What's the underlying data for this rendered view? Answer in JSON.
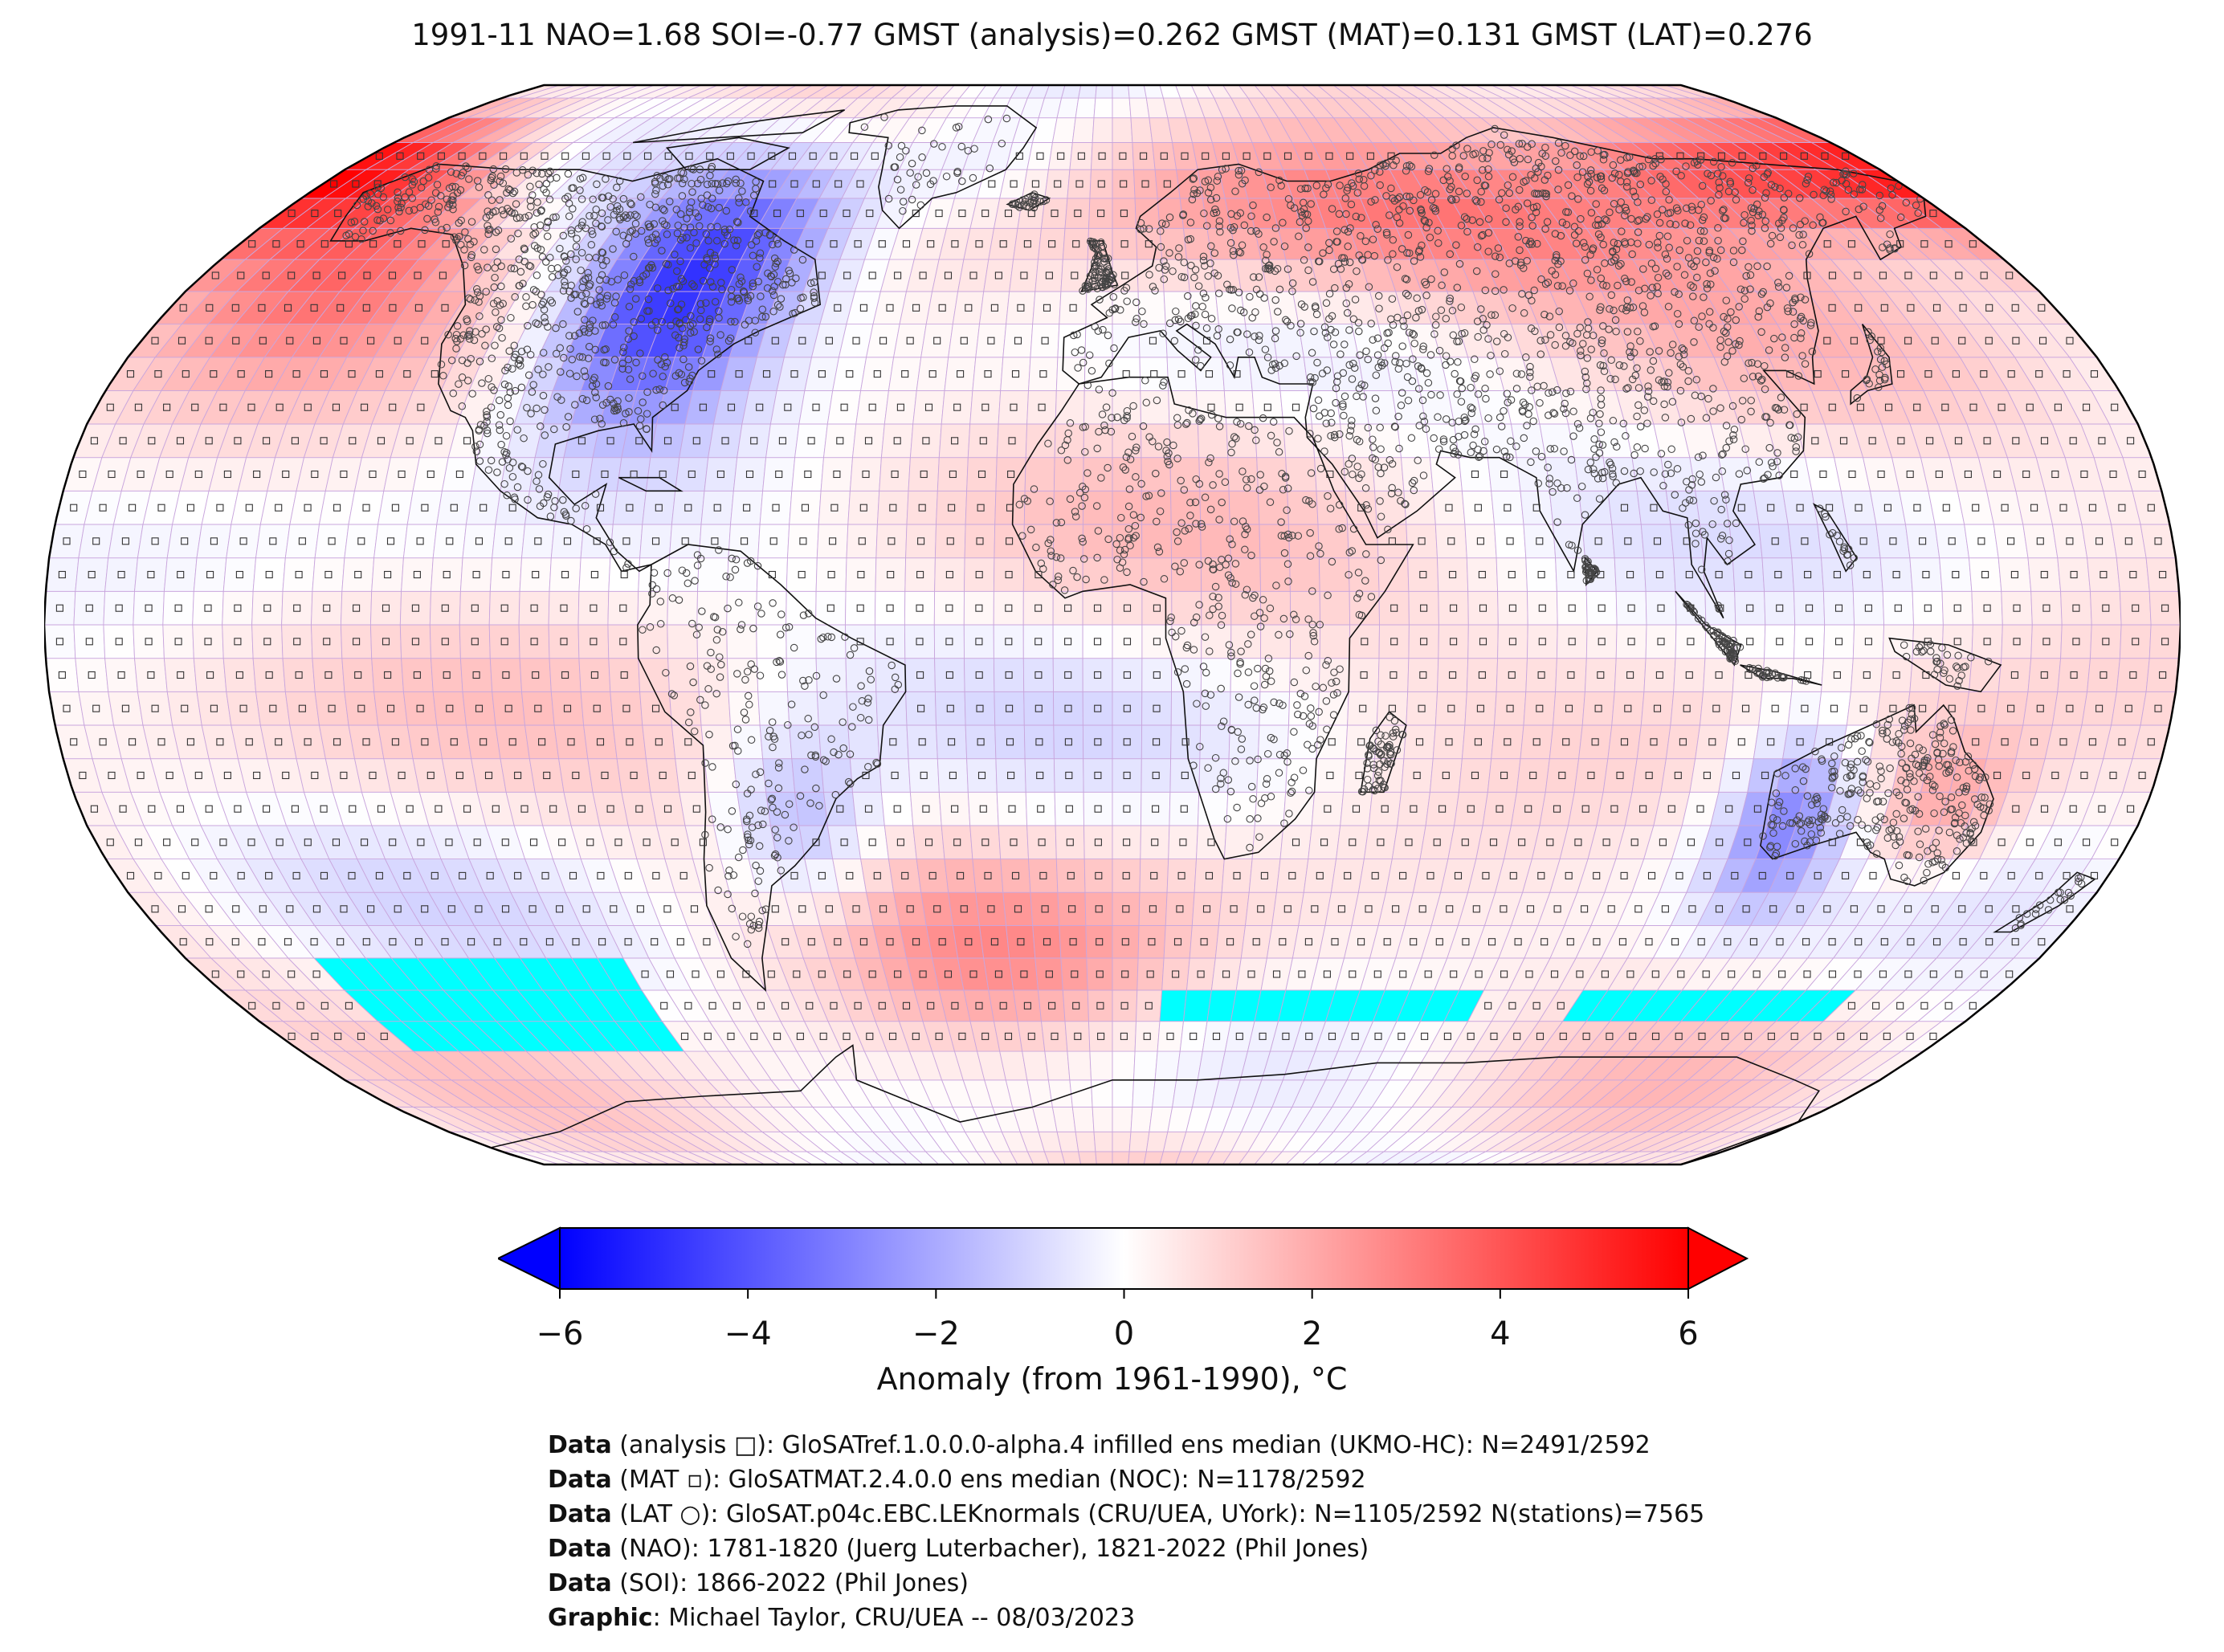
{
  "title": "1991-11 NAO=1.68 SOI=-0.77 GMST (analysis)=0.262 GMST (MAT)=0.131 GMST (LAT)=0.276",
  "colorbar": {
    "label": "Anomaly (from 1961-1990), °C",
    "ticks": [
      "−6",
      "−4",
      "−2",
      "0",
      "2",
      "4",
      "6"
    ],
    "range": [
      -6,
      6
    ],
    "colors": {
      "min": "#0000ff",
      "mid": "#ffffff",
      "max": "#ff0000"
    }
  },
  "map": {
    "projection": "Robinson",
    "grid": "5x5 degree",
    "missing_color": "#00ffff",
    "station_markers": "circles (LAT), small squares (MAT / analysis)"
  },
  "credits": [
    {
      "label": "Data",
      "text": " (analysis □): GloSATref.1.0.0.0-alpha.4 infilled ens median (UKMO-HC): N=2491/2592"
    },
    {
      "label": "Data",
      "text": " (MAT ▫): GloSATMAT.2.4.0.0 ens median (NOC): N=1178/2592"
    },
    {
      "label": "Data",
      "text": " (LAT ○): GloSAT.p04c.EBC.LEKnormals (CRU/UEA, UYork): N=1105/2592 N(stations)=7565"
    },
    {
      "label": "Data",
      "text": " (NAO): 1781-1820 (Juerg Luterbacher), 1821-2022 (Phil Jones)"
    },
    {
      "label": "Data",
      "text": " (SOI): 1866-2022 (Phil Jones)"
    },
    {
      "label": "Graphic",
      "text": ": Michael Taylor, CRU/UEA -- 08/03/2023"
    }
  ]
}
